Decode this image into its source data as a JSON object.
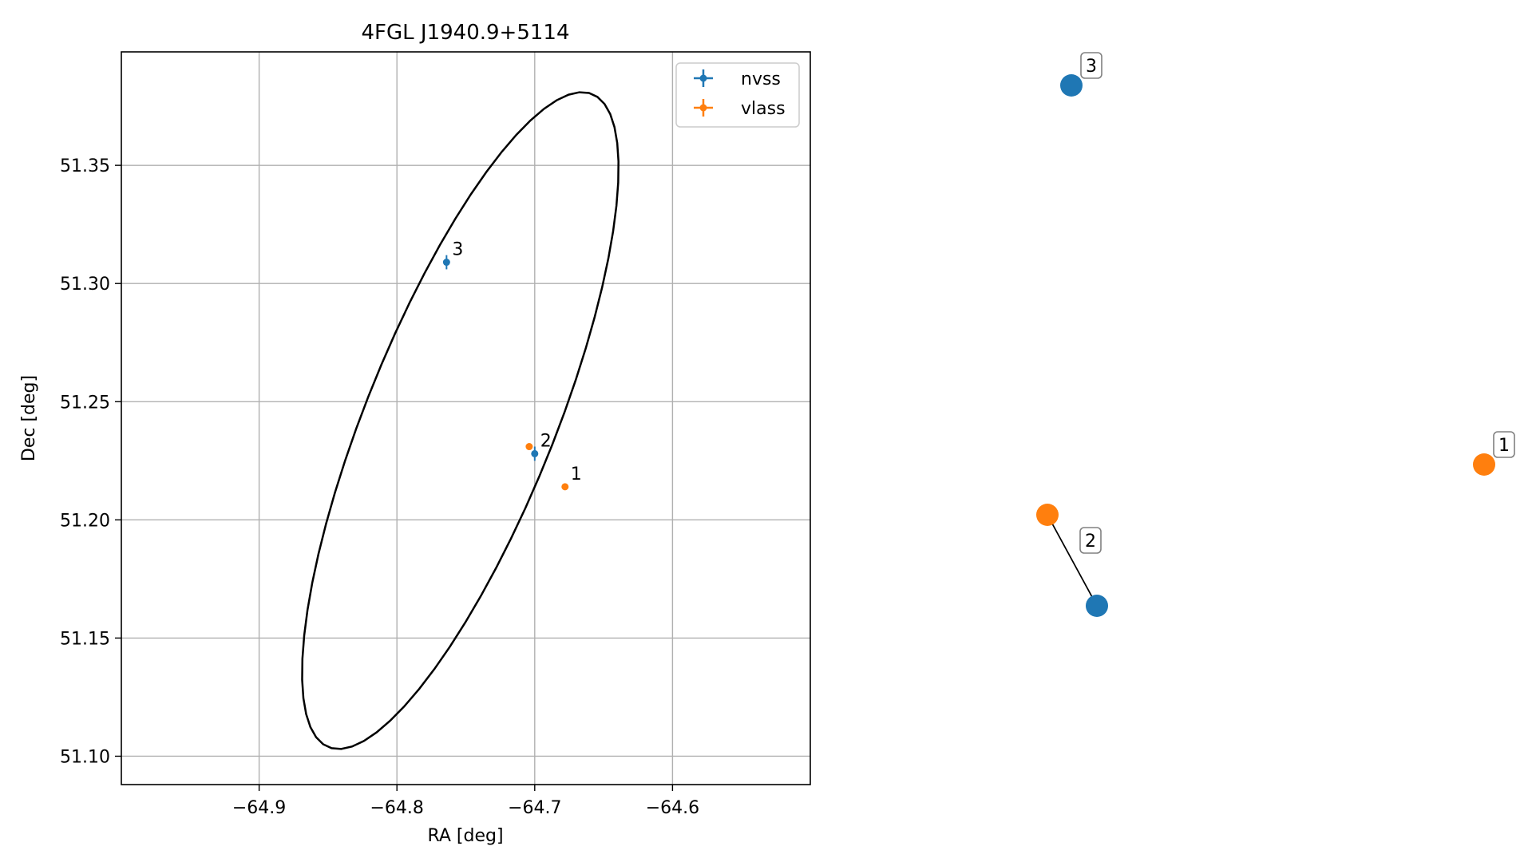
{
  "chart_data": [
    {
      "type": "scatter",
      "title": "4FGL J1940.9+5114",
      "xlabel": "RA [deg]",
      "ylabel": "Dec [deg]",
      "xlim": [
        -65.0,
        -64.5
      ],
      "ylim": [
        51.088,
        51.398
      ],
      "grid": true,
      "legend_position": "top-right",
      "x_ticks": [
        {
          "value": -64.9,
          "label": "−64.9"
        },
        {
          "value": -64.8,
          "label": "−64.8"
        },
        {
          "value": -64.7,
          "label": "−64.7"
        },
        {
          "value": -64.6,
          "label": "−64.6"
        }
      ],
      "y_ticks": [
        {
          "value": 51.1,
          "label": "51.10"
        },
        {
          "value": 51.15,
          "label": "51.15"
        },
        {
          "value": 51.2,
          "label": "51.20"
        },
        {
          "value": 51.25,
          "label": "51.25"
        },
        {
          "value": 51.3,
          "label": "51.30"
        },
        {
          "value": 51.35,
          "label": "51.35"
        }
      ],
      "series": [
        {
          "name": "nvss",
          "color": "#1f77b4",
          "points": [
            {
              "label": "2",
              "x": -64.7,
              "y": 51.228,
              "xerr": 0.0015,
              "yerr": 0.003
            },
            {
              "label": "3",
              "x": -64.764,
              "y": 51.309,
              "xerr": 0.0015,
              "yerr": 0.003
            }
          ]
        },
        {
          "name": "vlass",
          "color": "#ff7f0e",
          "points": [
            {
              "label": "1",
              "x": -64.678,
              "y": 51.214
            },
            {
              "label": null,
              "x": -64.704,
              "y": 51.231
            }
          ]
        }
      ],
      "ellipse": {
        "center": [
          -64.754,
          51.242
        ],
        "semi_axis_a": 0.17,
        "semi_axis_b": 0.06,
        "angle_deg": 52,
        "color": "#000000"
      }
    },
    {
      "type": "network",
      "nodes": [
        {
          "id": "3",
          "label": "3",
          "color": "#1f77b4"
        },
        {
          "id": "1",
          "label": "1",
          "color": "#ff7f0e"
        },
        {
          "id": "2a",
          "label": null,
          "color": "#ff7f0e"
        },
        {
          "id": "2b",
          "label": "2",
          "color": "#1f77b4"
        }
      ],
      "edges": [
        {
          "source": "2a",
          "target": "2b"
        }
      ]
    }
  ]
}
